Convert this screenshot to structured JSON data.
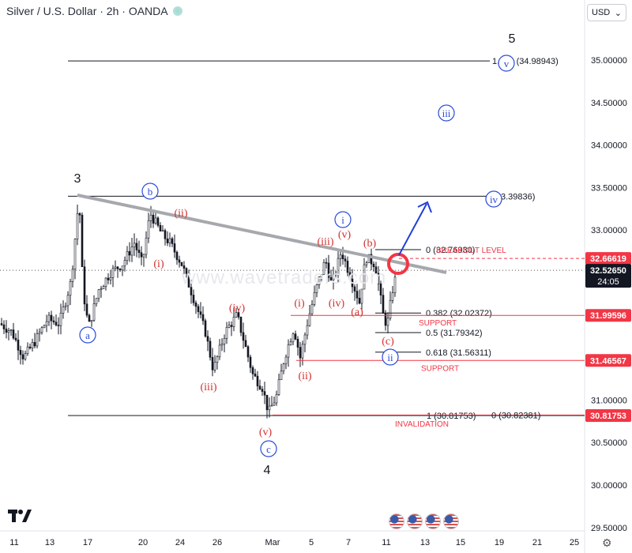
{
  "header": {
    "symbol": "Silver / U.S. Dollar · 2h · OANDA",
    "currency": "USD",
    "currency_chevron": "chevron-down-icon"
  },
  "watermark": "www.wavetraders.com",
  "logo": "TV",
  "chart_data": {
    "type": "candlestick",
    "y_range": [
      29.4,
      35.75
    ],
    "y_ticks": [
      {
        "v": 35.0,
        "l": "35.00000"
      },
      {
        "v": 34.5,
        "l": "34.50000"
      },
      {
        "v": 34.0,
        "l": "34.00000"
      },
      {
        "v": 33.5,
        "l": "33.50000"
      },
      {
        "v": 33.0,
        "l": "33.00000"
      },
      {
        "v": 32.0,
        "l": "32.00000"
      },
      {
        "v": 31.0,
        "l": "31.00000"
      },
      {
        "v": 30.5,
        "l": "30.50000"
      },
      {
        "v": 30.0,
        "l": "30.00000"
      },
      {
        "v": 29.5,
        "l": "29.50000"
      }
    ],
    "x_ticks": [
      "11",
      "13",
      "17",
      "20",
      "24",
      "26",
      "Mar",
      "5",
      "7",
      "11",
      "13",
      "15",
      "19",
      "21",
      "25"
    ],
    "price_path": [
      [
        0,
        31.9
      ],
      [
        15,
        31.8
      ],
      [
        30,
        31.5
      ],
      [
        45,
        31.7
      ],
      [
        60,
        31.95
      ],
      [
        75,
        31.9
      ],
      [
        90,
        32.4
      ],
      [
        100,
        33.4
      ],
      [
        105,
        32.3
      ],
      [
        112,
        31.85
      ],
      [
        125,
        32.3
      ],
      [
        140,
        32.5
      ],
      [
        155,
        32.6
      ],
      [
        170,
        32.85
      ],
      [
        180,
        32.6
      ],
      [
        190,
        33.2
      ],
      [
        205,
        32.95
      ],
      [
        215,
        32.85
      ],
      [
        230,
        32.6
      ],
      [
        245,
        32.2
      ],
      [
        260,
        31.8
      ],
      [
        270,
        31.35
      ],
      [
        285,
        31.8
      ],
      [
        300,
        32.0
      ],
      [
        310,
        31.65
      ],
      [
        320,
        31.3
      ],
      [
        332,
        31.15
      ],
      [
        340,
        30.85
      ],
      [
        350,
        31.05
      ],
      [
        360,
        31.5
      ],
      [
        372,
        31.85
      ],
      [
        380,
        31.5
      ],
      [
        390,
        31.95
      ],
      [
        400,
        32.3
      ],
      [
        412,
        32.65
      ],
      [
        420,
        32.35
      ],
      [
        432,
        32.75
      ],
      [
        442,
        32.5
      ],
      [
        455,
        32.15
      ],
      [
        463,
        32.68
      ],
      [
        475,
        32.6
      ],
      [
        485,
        32.0
      ],
      [
        490,
        31.87
      ],
      [
        497,
        32.3
      ],
      [
        503,
        32.52
      ]
    ],
    "horizontal_levels": [
      {
        "price": 34.98943,
        "label": "1.618 (34.98943)"
      },
      {
        "price": 33.39836,
        "label": "1 (33.39836)"
      },
      {
        "price": 32.7693,
        "label": "0 (32.76930)"
      },
      {
        "price": 32.02372,
        "label": "0.382 (32.02372)"
      },
      {
        "price": 31.79342,
        "label": "0.5 (31.79342)"
      },
      {
        "price": 31.56311,
        "label": "0.618 (31.56311)"
      },
      {
        "price": 30.81753,
        "label": "1 (30.81753)"
      },
      {
        "price": 30.82381,
        "label": "0 (30.82381)"
      }
    ],
    "zone_labels": [
      "BREAKOUT LEVEL",
      "SUPPORT",
      "SUPPORT",
      "INVALIDATION"
    ],
    "price_tags": [
      {
        "price": 32.66619,
        "label": "32.66619",
        "color": "#f23645"
      },
      {
        "price": 32.5265,
        "label": "32.52650",
        "sub": "24:05",
        "color": "#131722"
      },
      {
        "price": 31.99596,
        "label": "31.99596",
        "color": "#f23645"
      },
      {
        "price": 31.46567,
        "label": "31.46567",
        "color": "#f23645"
      },
      {
        "price": 30.81753,
        "label": "30.81753",
        "color": "#f23645"
      }
    ],
    "wave_labels_black": [
      "3",
      "4",
      "5"
    ],
    "wave_labels_blue_circled": [
      "a",
      "b",
      "c",
      "i",
      "ii",
      "iii",
      "iv",
      "v"
    ],
    "wave_labels_red": [
      "(i)",
      "(ii)",
      "(iii)",
      "(iv)",
      "(v)",
      "(i)",
      "(ii)",
      "(iii)",
      "(iv)",
      "(v)",
      "(a)",
      "(b)",
      "(c)"
    ]
  }
}
